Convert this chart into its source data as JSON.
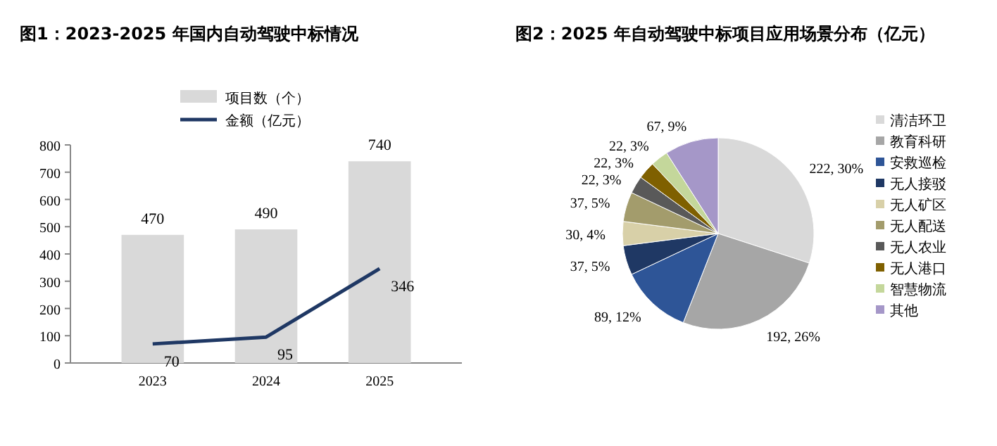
{
  "chart_data": [
    {
      "type": "bar",
      "title": "图1：2023-2025 年国内自动驾驶中标情况",
      "categories": [
        "2023",
        "2024",
        "2025"
      ],
      "ylim": [
        0,
        800
      ],
      "yticks": [
        0,
        100,
        200,
        300,
        400,
        500,
        600,
        700,
        800
      ],
      "legend": "top",
      "data_labels": true,
      "series": [
        {
          "name": "项目数（个）",
          "color": "#d9d9d9",
          "values": [
            470,
            490,
            740
          ]
        },
        {
          "name": "金额（亿元）",
          "type": "line",
          "color": "#1f3864",
          "values": [
            70,
            95,
            346
          ]
        }
      ]
    },
    {
      "type": "pie",
      "title": "图2：2025 年自动驾驶中标项目应用场景分布（亿元）",
      "legend": "right",
      "categories": [
        "清洁环卫",
        "教育科研",
        "安救巡检",
        "无人接驳",
        "无人矿区",
        "无人配送",
        "无人农业",
        "无人港口",
        "智慧物流",
        "其他"
      ],
      "values": [
        222,
        192,
        89,
        37,
        30,
        37,
        22,
        22,
        22,
        67
      ],
      "value_labels": [
        "222, 30%",
        "192, 26%",
        "89, 12%",
        "37, 5%",
        "30, 4%",
        "37, 5%",
        "22, 3%",
        "22, 3%",
        "22, 3%",
        "67, 9%"
      ],
      "colors": [
        "#d9d9d9",
        "#a6a6a6",
        "#2e5597",
        "#1f3864",
        "#d8d0a8",
        "#a39c6c",
        "#595959",
        "#7f6000",
        "#c4d79b",
        "#a597c8"
      ]
    }
  ]
}
